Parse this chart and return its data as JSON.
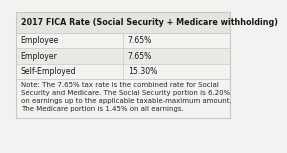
{
  "title": "2017 FICA Rate (Social Security + Medicare withholding)",
  "rows": [
    {
      "label": "Employee",
      "value": "7.65%"
    },
    {
      "label": "Employer",
      "value": "7.65%"
    },
    {
      "label": "Self-Employed",
      "value": "15.30%"
    }
  ],
  "note_lines": [
    "Note: The 7.65% tax rate is the combined rate for Social",
    "Security and Medicare. The Social Security portion is 6.20%",
    "on earnings up to the applicable taxable-maximum amount.",
    "The Medicare portion is 1.45% on all earnings."
  ],
  "bg_color": "#f2f2f0",
  "header_bg": "#e4e4e1",
  "row_bg_light": "#f2f2f0",
  "row_bg_mid": "#e9e9e6",
  "border_color": "#c8c8c4",
  "title_fontsize": 5.8,
  "row_fontsize": 5.6,
  "note_fontsize": 5.0,
  "col_split": 0.5,
  "text_color": "#1a1a1a",
  "note_color": "#2a2a2a"
}
